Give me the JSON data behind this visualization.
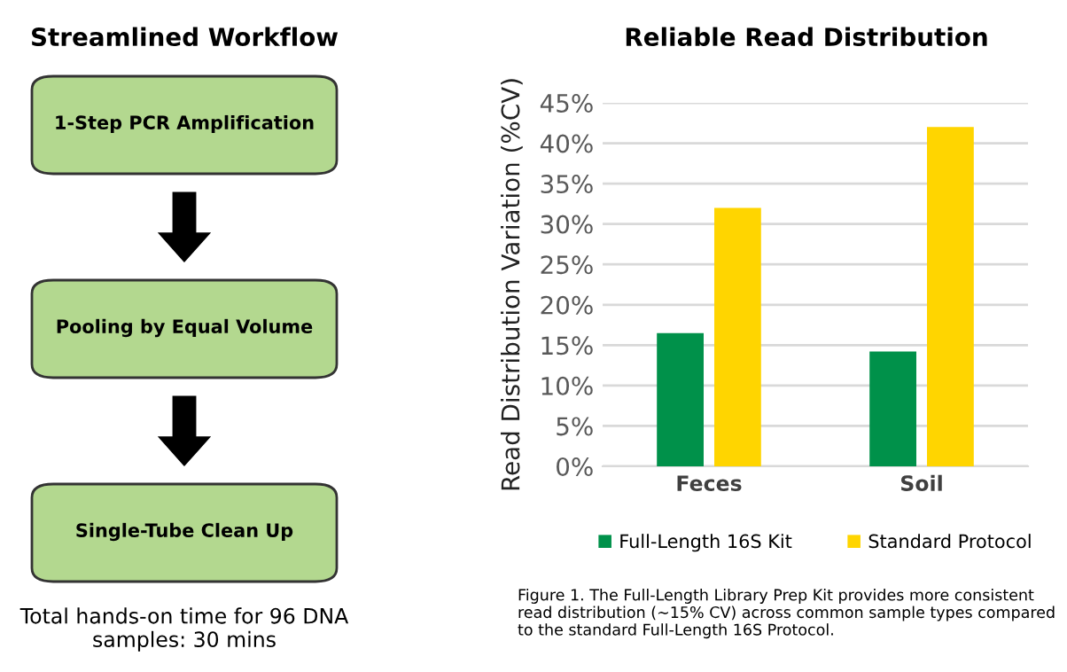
{
  "chart_data": [
    {
      "type": "other",
      "title": "Streamlined Workflow",
      "annotations": [
        "1-Step PCR Amplification",
        "Pooling by Equal Volume",
        "Single-Tube Clean Up",
        "Total hands-on time for 96 DNA samples: 30 mins"
      ]
    },
    {
      "type": "bar",
      "title": "Reliable Read Distribution",
      "ylabel": "Read Distribution Variation (%CV)",
      "categories": [
        "Feces",
        "Soil"
      ],
      "series": [
        {
          "name": "Full-Length 16S Kit",
          "color": "#00914a",
          "values": [
            16.5,
            14.2
          ]
        },
        {
          "name": "Standard Protocol",
          "color": "#ffd500",
          "values": [
            32,
            42
          ]
        }
      ],
      "ylim": [
        0,
        45
      ],
      "yticks": [
        {
          "value": 0,
          "label": "0%"
        },
        {
          "value": 5,
          "label": "5%"
        },
        {
          "value": 10,
          "label": "10%"
        },
        {
          "value": 15,
          "label": "15%"
        },
        {
          "value": 20,
          "label": "20%"
        },
        {
          "value": 25,
          "label": "25%"
        },
        {
          "value": 30,
          "label": "30%"
        },
        {
          "value": 35,
          "label": "35%"
        },
        {
          "value": 40,
          "label": "40%"
        },
        {
          "value": 45,
          "label": "45%"
        }
      ],
      "grid": "y",
      "legend": "bottom",
      "annotations": [
        "Figure 1. The Full-Length Library Prep Kit provides more consistent read distribution (~15% CV) across common sample types compared to the standard Full-Length 16S Protocol."
      ]
    }
  ]
}
